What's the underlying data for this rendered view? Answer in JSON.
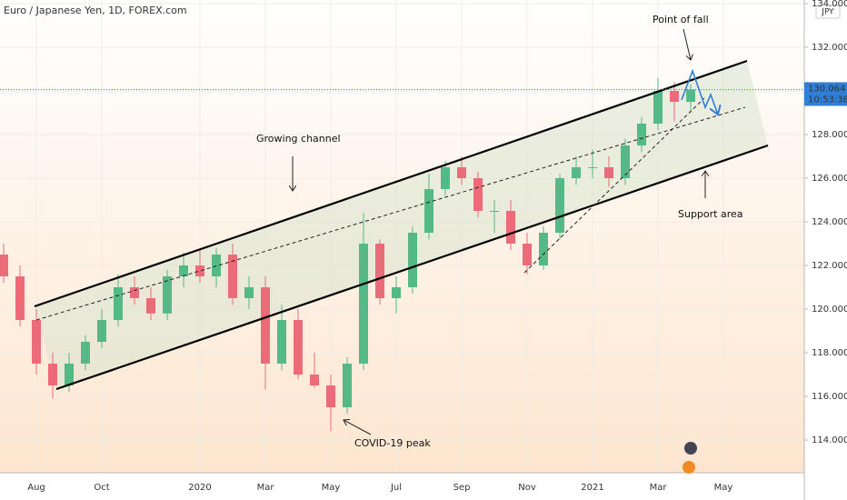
{
  "chart_data": {
    "type": "candlestick",
    "title": "Euro / Japanese Yen, 1D, FOREX.com",
    "currency": "JPY",
    "up_color": "#53b987",
    "down_color": "#eb6b78",
    "categories": [
      null,
      null,
      null,
      null,
      null,
      null,
      null,
      null,
      null,
      null,
      null,
      null,
      null,
      null,
      null,
      null,
      null,
      null,
      null,
      null,
      null,
      null,
      null,
      null,
      null,
      null,
      null,
      null,
      null,
      null,
      null,
      null,
      null,
      null,
      null,
      null,
      null,
      null,
      null,
      null,
      null,
      null,
      null
    ],
    "open": [
      122.5,
      121.5,
      119.5,
      117.5,
      116.5,
      117.5,
      118.5,
      119.5,
      121.0,
      120.5,
      119.8,
      121.5,
      122.0,
      121.5,
      122.5,
      120.5,
      121.0,
      117.5,
      119.5,
      117.0,
      116.5,
      115.5,
      117.5,
      123.0,
      120.5,
      121.0,
      123.5,
      125.5,
      126.5,
      126.0,
      124.5,
      124.5,
      123.0,
      122.0,
      123.5,
      126.0,
      126.5,
      126.5,
      126.0,
      127.5,
      128.5,
      130.0,
      129.5
    ],
    "high": [
      123.0,
      122.0,
      120.0,
      118.0,
      118.0,
      118.8,
      120.0,
      121.6,
      121.5,
      121.0,
      121.8,
      122.6,
      122.7,
      122.8,
      123.0,
      121.5,
      121.5,
      120.2,
      120.0,
      118.0,
      117.0,
      117.8,
      124.4,
      123.2,
      121.5,
      123.8,
      126.2,
      126.8,
      127.0,
      126.3,
      125.0,
      125.0,
      123.5,
      123.8,
      126.2,
      127.0,
      127.3,
      127.0,
      127.8,
      128.8,
      130.6,
      130.4,
      130.3
    ],
    "low": [
      121.2,
      119.2,
      117.0,
      115.9,
      116.2,
      117.2,
      118.2,
      119.2,
      120.2,
      119.5,
      119.5,
      121.0,
      121.2,
      121.0,
      120.2,
      120.0,
      116.3,
      117.2,
      116.8,
      116.4,
      114.4,
      115.2,
      117.2,
      120.2,
      119.8,
      120.7,
      123.2,
      125.2,
      125.7,
      124.2,
      123.5,
      122.7,
      121.6,
      121.8,
      123.2,
      125.7,
      126.0,
      125.6,
      125.7,
      127.2,
      128.2,
      128.6,
      129.0
    ],
    "close": [
      121.5,
      119.5,
      117.5,
      116.5,
      117.5,
      118.5,
      119.5,
      121.0,
      120.5,
      119.8,
      121.5,
      122.0,
      121.5,
      122.5,
      120.5,
      121.0,
      117.5,
      119.5,
      117.0,
      116.5,
      115.5,
      117.5,
      123.0,
      120.5,
      121.0,
      123.5,
      125.5,
      126.5,
      126.0,
      124.5,
      124.5,
      123.0,
      122.0,
      123.5,
      126.0,
      126.5,
      126.5,
      126.0,
      127.5,
      128.5,
      130.0,
      129.5,
      130.064
    ],
    "ylim": [
      112.5,
      134.1667
    ],
    "yticks": [
      {
        "value": 114,
        "label": "114.000"
      },
      {
        "value": 116,
        "label": "116.000"
      },
      {
        "value": 118,
        "label": "118.000"
      },
      {
        "value": 120,
        "label": "120.000"
      },
      {
        "value": 122,
        "label": "122.000"
      },
      {
        "value": 124,
        "label": "124.000"
      },
      {
        "value": 126,
        "label": "126.000"
      },
      {
        "value": 128,
        "label": "128.000"
      },
      {
        "value": 130,
        "label": "130.000"
      },
      {
        "value": 132,
        "label": "132.000"
      },
      {
        "value": 134,
        "label": "134.000"
      }
    ],
    "xticks": [
      {
        "value": 2,
        "label": "Aug"
      },
      {
        "value": 6,
        "label": "Oct"
      },
      {
        "value": 12,
        "label": "2020"
      },
      {
        "value": 16,
        "label": "Mar"
      },
      {
        "value": 20,
        "label": "May"
      },
      {
        "value": 24,
        "label": "Jul"
      },
      {
        "value": 28,
        "label": "Sep"
      },
      {
        "value": 32,
        "label": "Nov"
      },
      {
        "value": 36,
        "label": "2021"
      },
      {
        "value": 40,
        "label": "Mar"
      },
      {
        "value": 44,
        "label": "May"
      }
    ],
    "last_price": 130.064,
    "countdown": "10:53:38",
    "annotations": [
      "Growing channel",
      "Point of fall",
      "Support area",
      "COVID-19 peak"
    ]
  }
}
